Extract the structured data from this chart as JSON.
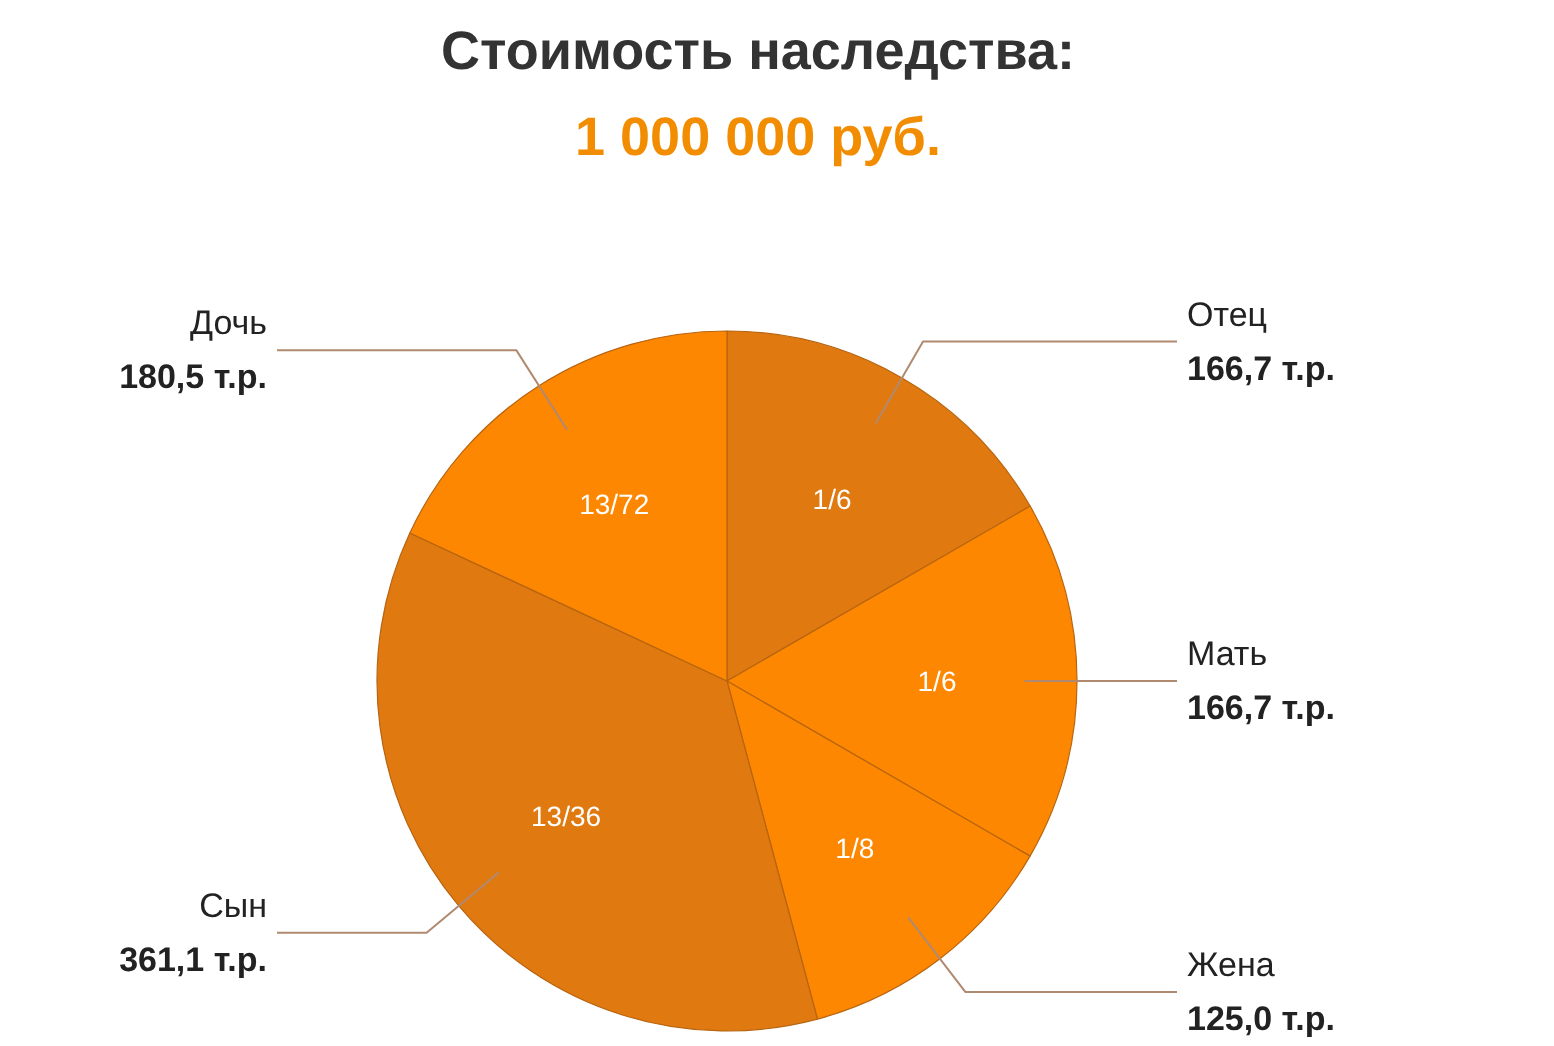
{
  "chart_data": {
    "type": "pie",
    "title": "Стоимость наследства:",
    "subtitle": "1 000 000 руб.",
    "categories": [
      "Отец",
      "Мать",
      "Жена",
      "Сын",
      "Дочь"
    ],
    "values": [
      166.7,
      166.7,
      125.0,
      361.1,
      180.5
    ],
    "colors": [
      "#e07a10",
      "#fd8700",
      "#fd8700",
      "#e07a10",
      "#fd8700"
    ],
    "value_labels": [
      "166,7 т.р.",
      "166,7 т.р.",
      "125,0 т.р.",
      "361,1 т.р.",
      "180,5 т.р."
    ],
    "annotations": [
      {
        "text": "1/6",
        "x": "Отец"
      },
      {
        "text": "1/6",
        "x": "Мать"
      },
      {
        "text": "1/8",
        "x": "Жена"
      },
      {
        "text": "13/36",
        "x": "Сын"
      },
      {
        "text": "13/72",
        "x": "Дочь"
      }
    ]
  }
}
